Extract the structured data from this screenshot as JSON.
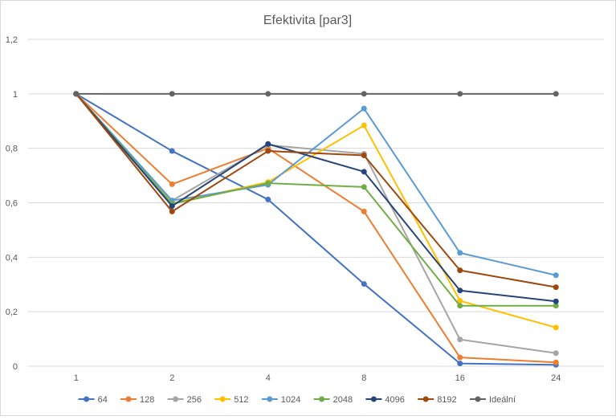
{
  "chart_data": {
    "type": "line",
    "title": "Efektivita [par3]",
    "xlabel": "",
    "ylabel": "",
    "categories": [
      "1",
      "2",
      "4",
      "8",
      "16",
      "24"
    ],
    "ylim": [
      0,
      1.2
    ],
    "yticks": [
      0,
      0.2,
      0.4,
      0.6,
      0.8,
      1,
      1.2
    ],
    "ytick_labels": [
      "0",
      "0,2",
      "0,4",
      "0,6",
      "0,8",
      "1",
      "1,2"
    ],
    "grid": true,
    "legend_position": "bottom",
    "series": [
      {
        "name": "64",
        "color": "#4472c4",
        "values": [
          1,
          0.79,
          0.612,
          0.302,
          0.01,
          0.005
        ]
      },
      {
        "name": "128",
        "color": "#ed7d31",
        "values": [
          1,
          0.668,
          0.8,
          0.568,
          0.032,
          0.014
        ]
      },
      {
        "name": "256",
        "color": "#a5a5a5",
        "values": [
          1,
          0.608,
          0.812,
          0.78,
          0.098,
          0.048
        ]
      },
      {
        "name": "512",
        "color": "#ffc000",
        "values": [
          1,
          0.598,
          0.676,
          0.884,
          0.24,
          0.142
        ]
      },
      {
        "name": "1024",
        "color": "#5b9bd5",
        "values": [
          1,
          0.608,
          0.666,
          0.946,
          0.416,
          0.334
        ]
      },
      {
        "name": "2048",
        "color": "#70ad47",
        "values": [
          1,
          0.596,
          0.672,
          0.658,
          0.222,
          0.222
        ]
      },
      {
        "name": "4096",
        "color": "#264478",
        "values": [
          1,
          0.588,
          0.816,
          0.714,
          0.278,
          0.238
        ]
      },
      {
        "name": "8192",
        "color": "#9e480e",
        "values": [
          1,
          0.568,
          0.79,
          0.774,
          0.352,
          0.29
        ]
      },
      {
        "name": "Ideální",
        "color": "#636363",
        "values": [
          1,
          1,
          1,
          1,
          1,
          1
        ]
      }
    ]
  }
}
